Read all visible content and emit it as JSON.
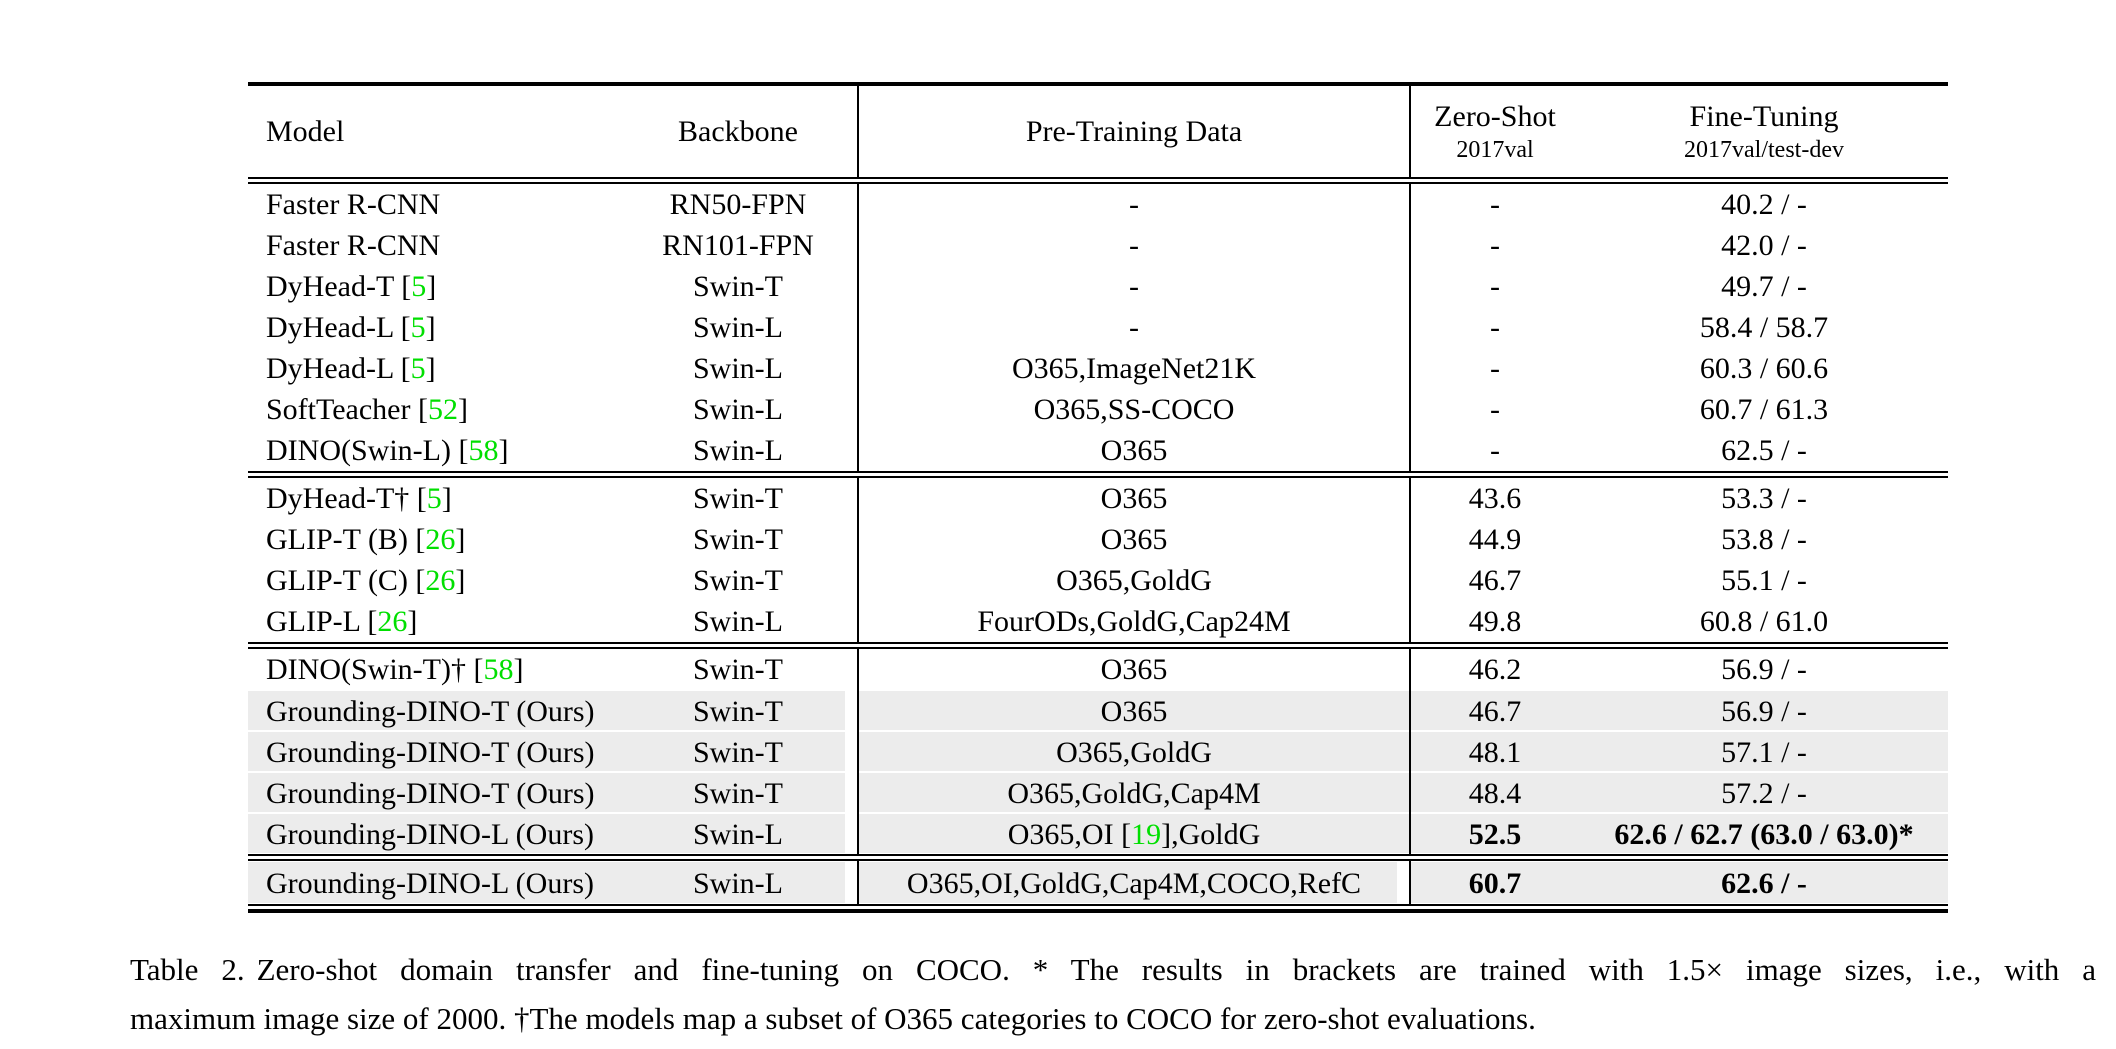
{
  "colors": {
    "citation_green": "#00df00",
    "row_highlight": "#ececec",
    "rule_black": "#000000"
  },
  "table": {
    "header": {
      "model": "Model",
      "backbone": "Backbone",
      "pretrain": "Pre-Training Data",
      "zeroshot_line1": "Zero-Shot",
      "zeroshot_line2": "2017val",
      "finetune_line1": "Fine-Tuning",
      "finetune_line2": "2017val/test-dev"
    },
    "blocks": [
      {
        "rows": [
          {
            "model": "Faster R-CNN",
            "backbone": "RN50-FPN",
            "pretrain": "-",
            "zeroshot": "-",
            "finetune": "40.2 / -"
          },
          {
            "model": "Faster R-CNN",
            "backbone": "RN101-FPN",
            "pretrain": "-",
            "zeroshot": "-",
            "finetune": "42.0 / -"
          },
          {
            "model": [
              {
                "t": "DyHead-T ["
              },
              {
                "g": "5"
              },
              {
                "t": "]"
              }
            ],
            "backbone": "Swin-T",
            "pretrain": "-",
            "zeroshot": "-",
            "finetune": "49.7 / -"
          },
          {
            "model": [
              {
                "t": "DyHead-L ["
              },
              {
                "g": "5"
              },
              {
                "t": "]"
              }
            ],
            "backbone": "Swin-L",
            "pretrain": "-",
            "zeroshot": "-",
            "finetune": "58.4 / 58.7"
          },
          {
            "model": [
              {
                "t": "DyHead-L ["
              },
              {
                "g": "5"
              },
              {
                "t": "]"
              }
            ],
            "backbone": "Swin-L",
            "pretrain": "O365,ImageNet21K",
            "zeroshot": "-",
            "finetune": "60.3 / 60.6"
          },
          {
            "model": [
              {
                "t": "SoftTeacher ["
              },
              {
                "g": "52"
              },
              {
                "t": "]"
              }
            ],
            "backbone": "Swin-L",
            "pretrain": "O365,SS-COCO",
            "zeroshot": "-",
            "finetune": "60.7 / 61.3"
          },
          {
            "model": [
              {
                "t": "DINO(Swin-L) ["
              },
              {
                "g": "58"
              },
              {
                "t": "]"
              }
            ],
            "backbone": "Swin-L",
            "pretrain": "O365",
            "zeroshot": "-",
            "finetune": "62.5 / -"
          }
        ]
      },
      {
        "rows": [
          {
            "model": [
              {
                "t": "DyHead-T† ["
              },
              {
                "g": "5"
              },
              {
                "t": "]"
              }
            ],
            "backbone": "Swin-T",
            "pretrain": "O365",
            "zeroshot": "43.6",
            "finetune": "53.3 / -"
          },
          {
            "model": [
              {
                "t": "GLIP-T (B) ["
              },
              {
                "g": "26"
              },
              {
                "t": "]"
              }
            ],
            "backbone": "Swin-T",
            "pretrain": "O365",
            "zeroshot": "44.9",
            "finetune": "53.8 / -"
          },
          {
            "model": [
              {
                "t": "GLIP-T (C) ["
              },
              {
                "g": "26"
              },
              {
                "t": "]"
              }
            ],
            "backbone": "Swin-T",
            "pretrain": "O365,GoldG",
            "zeroshot": "46.7",
            "finetune": "55.1 / -"
          },
          {
            "model": [
              {
                "t": "GLIP-L ["
              },
              {
                "g": "26"
              },
              {
                "t": "]"
              }
            ],
            "backbone": "Swin-L",
            "pretrain": "FourODs,GoldG,Cap24M",
            "zeroshot": "49.8",
            "finetune": "60.8 / 61.0"
          }
        ]
      },
      {
        "rows": [
          {
            "model": [
              {
                "t": "DINO(Swin-T)† ["
              },
              {
                "g": "58"
              },
              {
                "t": "]"
              }
            ],
            "backbone": "Swin-T",
            "pretrain": "O365",
            "zeroshot": "46.2",
            "finetune": "56.9 / -"
          },
          {
            "model": "Grounding-DINO-T (Ours)",
            "backbone": "Swin-T",
            "pretrain": "O365",
            "zeroshot": "46.7",
            "finetune": "56.9 / -",
            "hl": true
          },
          {
            "model": "Grounding-DINO-T (Ours)",
            "backbone": "Swin-T",
            "pretrain": "O365,GoldG",
            "zeroshot": "48.1",
            "finetune": "57.1 / -",
            "hl": true
          },
          {
            "model": "Grounding-DINO-T (Ours)",
            "backbone": "Swin-T",
            "pretrain": "O365,GoldG,Cap4M",
            "zeroshot": "48.4",
            "finetune": "57.2 / -",
            "hl": true
          },
          {
            "model": "Grounding-DINO-L (Ours)",
            "backbone": "Swin-L",
            "pretrain": [
              {
                "t": "O365,OI ["
              },
              {
                "g": "19"
              },
              {
                "t": "],GoldG"
              }
            ],
            "zeroshot": "52.5",
            "finetune": "62.6 / 62.7 (63.0 / 63.0)*",
            "hl": true,
            "bold_metrics": true
          }
        ]
      },
      {
        "rows": [
          {
            "model": "Grounding-DINO-L (Ours)",
            "backbone": "Swin-L",
            "pretrain": "O365,OI,GoldG,Cap4M,COCO,RefC",
            "zeroshot": "60.7",
            "finetune": "62.6 / -",
            "hl": true,
            "gap2": true,
            "bold_metrics": true
          }
        ]
      }
    ]
  },
  "caption": {
    "label": "Table 2.",
    "line1": "Zero-shot domain transfer and fine-tuning on COCO. * The results in brackets are trained with 1.5× image sizes, i.e., with a",
    "line2": "maximum image size of 2000. †The models map a subset of O365 categories to COCO for zero-shot evaluations."
  }
}
